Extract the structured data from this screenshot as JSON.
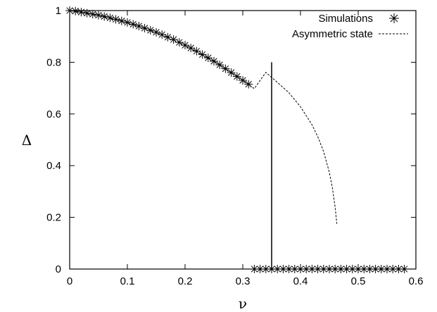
{
  "chart_data": {
    "type": "scatter",
    "title": "",
    "xlabel": "ν",
    "ylabel": "Δ",
    "xlim": [
      0,
      0.6
    ],
    "ylim": [
      0,
      1
    ],
    "x_ticks": [
      "0",
      "0.1",
      "0.2",
      "0.3",
      "0.4",
      "0.5",
      "0.6"
    ],
    "y_ticks": [
      "0",
      "0.2",
      "0.4",
      "0.6",
      "0.8",
      "1"
    ],
    "grid": false,
    "legend_position": "top-right",
    "series": [
      {
        "name": "Simulations",
        "kind": "scatter",
        "marker": "asterisk",
        "x": [
          0,
          0.01,
          0.02,
          0.03,
          0.04,
          0.05,
          0.06,
          0.07,
          0.08,
          0.09,
          0.1,
          0.11,
          0.12,
          0.13,
          0.14,
          0.15,
          0.16,
          0.17,
          0.18,
          0.19,
          0.2,
          0.21,
          0.22,
          0.23,
          0.24,
          0.25,
          0.26,
          0.27,
          0.28,
          0.29,
          0.3,
          0.31,
          0.32,
          0.33,
          0.34,
          0.35,
          0.36,
          0.37,
          0.38,
          0.39,
          0.4,
          0.41,
          0.42,
          0.43,
          0.44,
          0.45,
          0.46,
          0.47,
          0.48,
          0.49,
          0.5,
          0.51,
          0.52,
          0.53,
          0.54,
          0.55,
          0.56,
          0.57,
          0.58
        ],
        "y": [
          1.0,
          0.998,
          0.994,
          0.99,
          0.986,
          0.982,
          0.977,
          0.972,
          0.966,
          0.96,
          0.954,
          0.947,
          0.94,
          0.932,
          0.924,
          0.916,
          0.907,
          0.897,
          0.888,
          0.877,
          0.866,
          0.855,
          0.843,
          0.83,
          0.817,
          0.804,
          0.79,
          0.775,
          0.76,
          0.745,
          0.73,
          0.715,
          0,
          0,
          0,
          0,
          0,
          0,
          0,
          0,
          0,
          0,
          0,
          0,
          0,
          0,
          0,
          0,
          0,
          0,
          0,
          0,
          0,
          0,
          0,
          0,
          0,
          0,
          0
        ]
      },
      {
        "name": "Asymmetric state",
        "kind": "line",
        "style": "dashed",
        "x": [
          0,
          0.05,
          0.1,
          0.15,
          0.2,
          0.25,
          0.3,
          0.32,
          0.34,
          0.36,
          0.38,
          0.4,
          0.42,
          0.43,
          0.44,
          0.45,
          0.455,
          0.46,
          0.463
        ],
        "y": [
          1.0,
          0.982,
          0.954,
          0.916,
          0.866,
          0.804,
          0.73,
          0.698,
          0.761,
          0.722,
          0.682,
          0.628,
          0.558,
          0.512,
          0.455,
          0.374,
          0.318,
          0.24,
          0.175
        ]
      },
      {
        "name": "",
        "kind": "vline",
        "x": 0.35,
        "y_range": [
          0,
          0.8
        ]
      }
    ]
  }
}
